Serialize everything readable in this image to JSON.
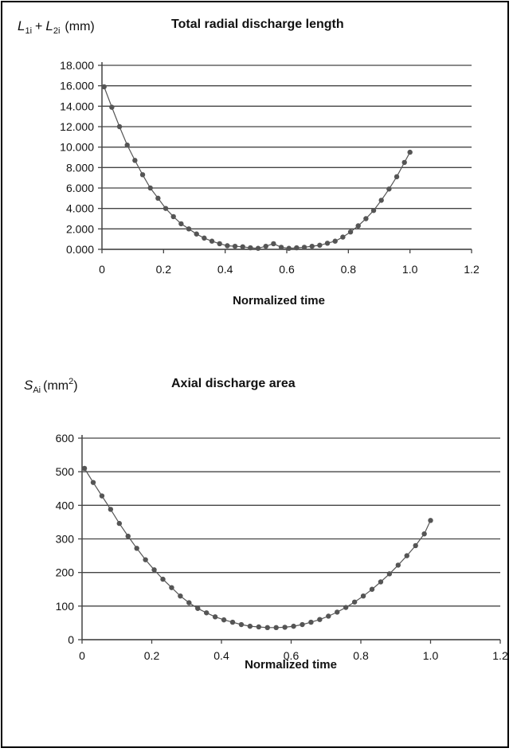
{
  "chart_data": [
    {
      "type": "line",
      "title": "Total radial discharge length",
      "ylabel_parts": {
        "a": "L",
        "a_sub": "1i",
        "plus": "+",
        "b": "L",
        "b_sub": "2i",
        "unit": "(mm)"
      },
      "xlabel": "Normalized time",
      "xlim": [
        0,
        1.2
      ],
      "ylim": [
        0,
        18
      ],
      "x_ticks": [
        "0",
        "0.2",
        "0.4",
        "0.6",
        "0.8",
        "1.0",
        "1.2"
      ],
      "y_ticks": [
        "0.000",
        "2.000",
        "4.000",
        "6.000",
        "8.000",
        "10.000",
        "12.000",
        "14.000",
        "16.000",
        "18.000"
      ],
      "grid": true,
      "series": [
        {
          "color": "#555555",
          "x": [
            0.007,
            0.032,
            0.057,
            0.082,
            0.107,
            0.132,
            0.157,
            0.182,
            0.207,
            0.232,
            0.257,
            0.282,
            0.307,
            0.332,
            0.357,
            0.382,
            0.407,
            0.432,
            0.457,
            0.482,
            0.507,
            0.532,
            0.557,
            0.582,
            0.607,
            0.632,
            0.657,
            0.682,
            0.707,
            0.732,
            0.757,
            0.782,
            0.807,
            0.832,
            0.857,
            0.882,
            0.907,
            0.932,
            0.957,
            0.982,
            1.0
          ],
          "y": [
            15.9,
            13.9,
            12.0,
            10.2,
            8.7,
            7.3,
            6.0,
            5.0,
            4.0,
            3.2,
            2.5,
            2.0,
            1.5,
            1.1,
            0.8,
            0.55,
            0.35,
            0.3,
            0.25,
            0.15,
            0.1,
            0.3,
            0.55,
            0.2,
            0.1,
            0.15,
            0.2,
            0.3,
            0.4,
            0.6,
            0.8,
            1.2,
            1.7,
            2.3,
            3.0,
            3.8,
            4.8,
            5.9,
            7.1,
            8.5,
            9.5
          ]
        }
      ]
    },
    {
      "type": "line",
      "title": "Axial discharge area",
      "ylabel_parts": {
        "a": "S",
        "a_sub": "Ai",
        "unit": "(mm",
        "sup": "2",
        "close": ")"
      },
      "xlabel": "Normalized time",
      "xlim": [
        0,
        1.2
      ],
      "ylim": [
        0,
        600
      ],
      "x_ticks": [
        "0",
        "0.2",
        "0.4",
        "0.6",
        "0.8",
        "1.0",
        "1.2"
      ],
      "y_ticks": [
        "0",
        "100",
        "200",
        "300",
        "400",
        "500",
        "600"
      ],
      "grid": true,
      "series": [
        {
          "color": "#555555",
          "x": [
            0.007,
            0.032,
            0.057,
            0.082,
            0.107,
            0.132,
            0.157,
            0.182,
            0.207,
            0.232,
            0.257,
            0.282,
            0.307,
            0.332,
            0.357,
            0.382,
            0.407,
            0.432,
            0.457,
            0.482,
            0.507,
            0.532,
            0.557,
            0.582,
            0.607,
            0.632,
            0.657,
            0.682,
            0.707,
            0.732,
            0.757,
            0.782,
            0.807,
            0.832,
            0.857,
            0.882,
            0.907,
            0.932,
            0.957,
            0.982,
            1.0
          ],
          "y": [
            510,
            468,
            428,
            388,
            346,
            308,
            272,
            238,
            208,
            180,
            155,
            130,
            110,
            93,
            80,
            68,
            59,
            52,
            45,
            40,
            38,
            36,
            36,
            37,
            40,
            45,
            52,
            60,
            70,
            82,
            96,
            112,
            130,
            150,
            172,
            196,
            222,
            250,
            280,
            315,
            355
          ]
        }
      ]
    }
  ]
}
